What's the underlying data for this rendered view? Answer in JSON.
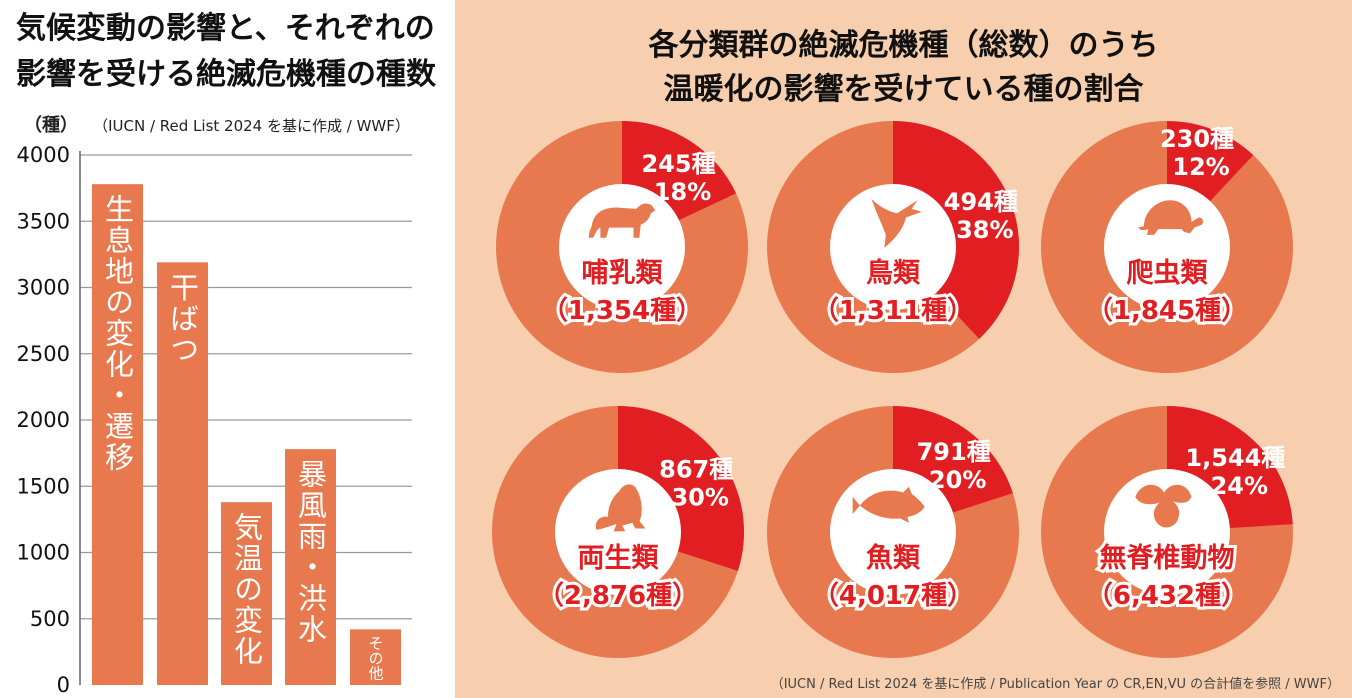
{
  "left": {
    "title_line1": "気候変動の影響と、それぞれの",
    "title_line2": "影響を受ける絶滅危機種の種数",
    "unit": "（種）",
    "source": "（IUCN / Red List 2024 を基に作成 / WWF）"
  },
  "right": {
    "title_line1": "各分類群の絶滅危機種（総数）のうち",
    "title_line2": "温暖化の影響を受けている種の割合",
    "source": "（IUCN / Red List 2024 を基に作成 / Publication Year の CR,EN,VU の合計値を参照 / WWF）"
  },
  "colors": {
    "bar": "#e8794f",
    "pie_base": "#e8794f",
    "pie_highlight": "#e11f22",
    "right_background": "#f7cfae",
    "grid": "#9a9a9a",
    "label_red": "#e11f22"
  },
  "chart_data": [
    {
      "type": "bar",
      "title": "気候変動の影響と、それぞれの影響を受ける絶滅危機種の種数",
      "ylabel": "（種）",
      "ylim": [
        0,
        4000
      ],
      "yticks": [
        0,
        500,
        1000,
        1500,
        2000,
        2500,
        3000,
        3500,
        4000
      ],
      "grid": true,
      "categories": [
        "生息地の変化・遷移",
        "干ばつ",
        "気温の変化",
        "暴風雨・洪水",
        "その他"
      ],
      "values": [
        3780,
        3190,
        1380,
        1780,
        420
      ]
    },
    {
      "type": "pie",
      "title": "各分類群の絶滅危機種（総数）のうち温暖化の影響を受けている種の割合",
      "pies": [
        {
          "group": "哺乳類",
          "total": "（1,354種）",
          "count": "245種",
          "percent": "18%",
          "fraction": 0.18,
          "icon": "bear-icon"
        },
        {
          "group": "鳥類",
          "total": "（1,311種）",
          "count": "494種",
          "percent": "38%",
          "fraction": 0.38,
          "icon": "bird-icon"
        },
        {
          "group": "爬虫類",
          "total": "（1,845種）",
          "count": "230種",
          "percent": "12%",
          "fraction": 0.12,
          "icon": "turtle-icon"
        },
        {
          "group": "両生類",
          "total": "（2,876種）",
          "count": "867種",
          "percent": "30%",
          "fraction": 0.3,
          "icon": "frog-icon"
        },
        {
          "group": "魚類",
          "total": "（4,017種）",
          "count": "791種",
          "percent": "20%",
          "fraction": 0.2,
          "icon": "fish-icon"
        },
        {
          "group": "無脊椎動物",
          "total": "（6,432種）",
          "count": "1,544種",
          "percent": "24%",
          "fraction": 0.24,
          "icon": "bee-icon"
        }
      ]
    }
  ]
}
